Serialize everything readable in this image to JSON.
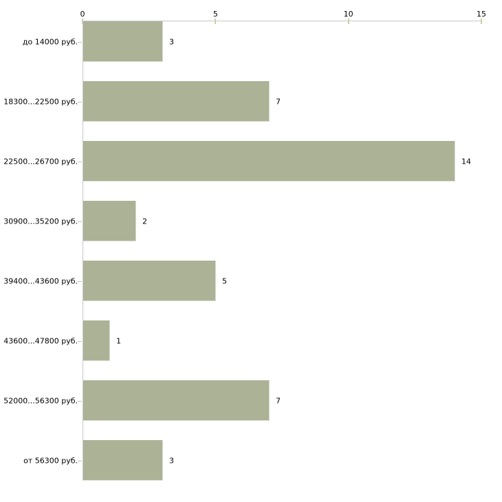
{
  "chart_data": {
    "type": "bar",
    "orientation": "horizontal",
    "categories": [
      "до 14000 руб.",
      "18300...22500 руб.",
      "22500...26700 руб.",
      "30900...35200 руб.",
      "39400...43600 руб.",
      "43600...47800 руб.",
      "52000...56300 руб.",
      "от 56300 руб."
    ],
    "values": [
      3,
      7,
      14,
      2,
      5,
      1,
      7,
      3
    ],
    "value_axis": {
      "position": "top",
      "min": 0,
      "max": 15,
      "ticks": [
        0,
        5,
        10,
        15
      ]
    },
    "grid": false,
    "legend": "none",
    "colors": {
      "bar": "#abb296",
      "bar_edge": "#dcdfd3",
      "axis_line": "#c8c8c8",
      "axis_tick": "#cbcfa2",
      "category_tick": "#c4c4bc",
      "text": "#000000",
      "background": "#ffffff"
    }
  }
}
